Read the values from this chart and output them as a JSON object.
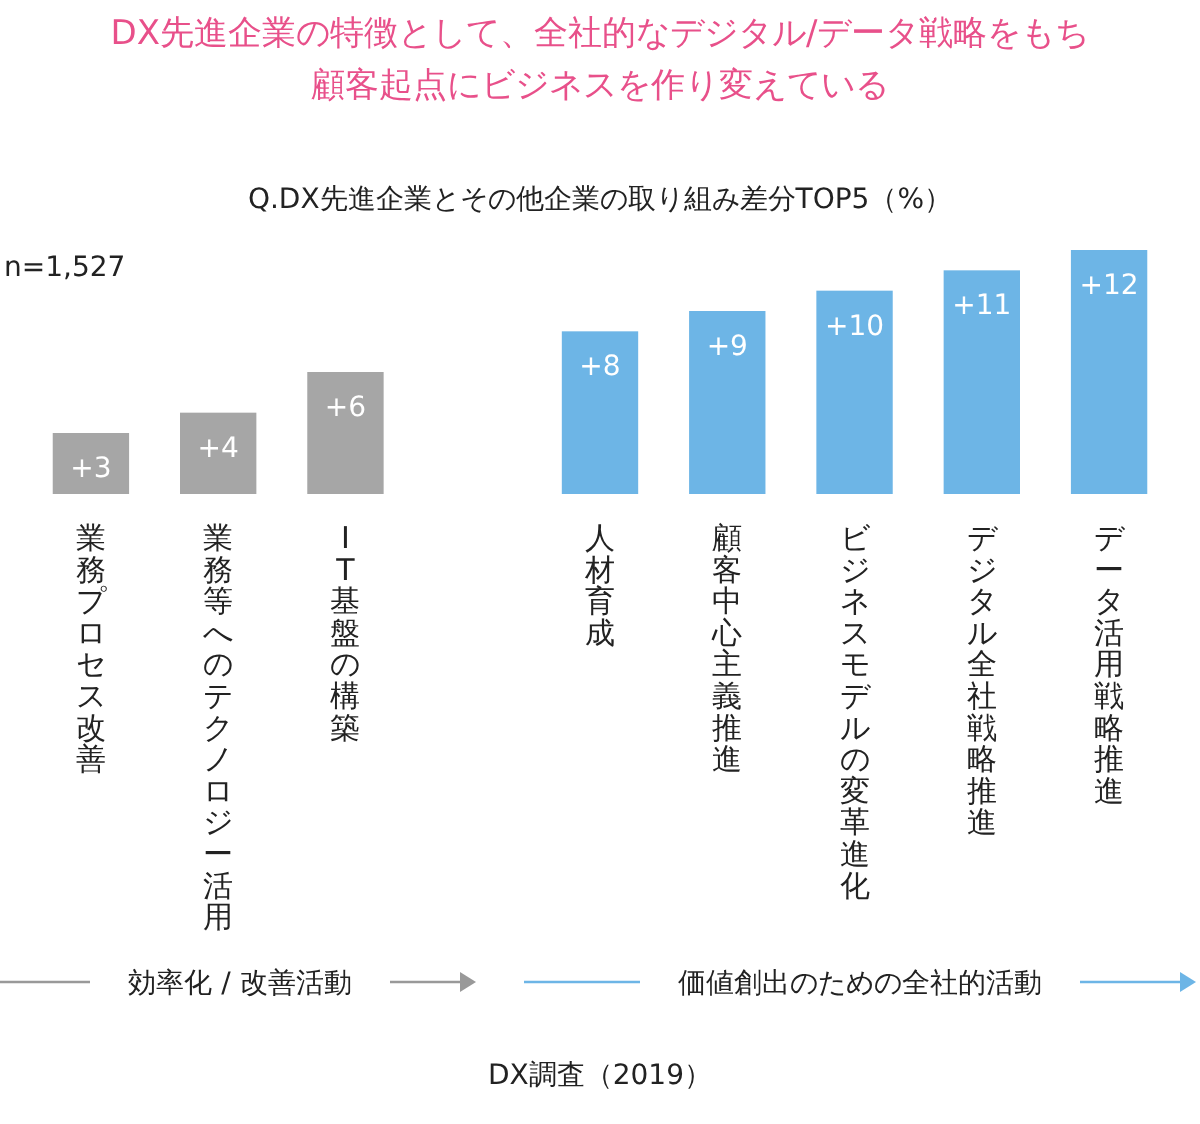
{
  "chart_data": {
    "type": "bar",
    "title": "DX先進企業の特徴として、全社的なデジタル/データ戦略をもち顧客起点にビジネスを作り変えている",
    "subtitle": "Q.DX先進企業とその他企業の取り組み差分TOP5（%）",
    "categories": [
      "業務プロセス改善",
      "業務等へのテクノロジー活用",
      "IT基盤の構築",
      null,
      "人材育成",
      "顧客中心主義推進",
      "ビジネスモデルの変革進化",
      "デジタル全社戦略推進",
      "データ活用戦略推進"
    ],
    "values": [
      3,
      4,
      6,
      null,
      8,
      9,
      10,
      11,
      12
    ],
    "colors": [
      "#a6a6a6",
      "#a6a6a6",
      "#a6a6a6",
      null,
      "#6db5e6",
      "#6db5e6",
      "#6db5e6",
      "#6db5e6",
      "#6db5e6"
    ],
    "value_labels": [
      "+3",
      "+4",
      "+6",
      null,
      "+8",
      "+9",
      "+10",
      "+11",
      "+12"
    ],
    "annotations": [
      "n=1,527",
      "効率化 / 改善活動",
      "価値創出のための全社的活動",
      "DX調査（2019）"
    ]
  }
}
